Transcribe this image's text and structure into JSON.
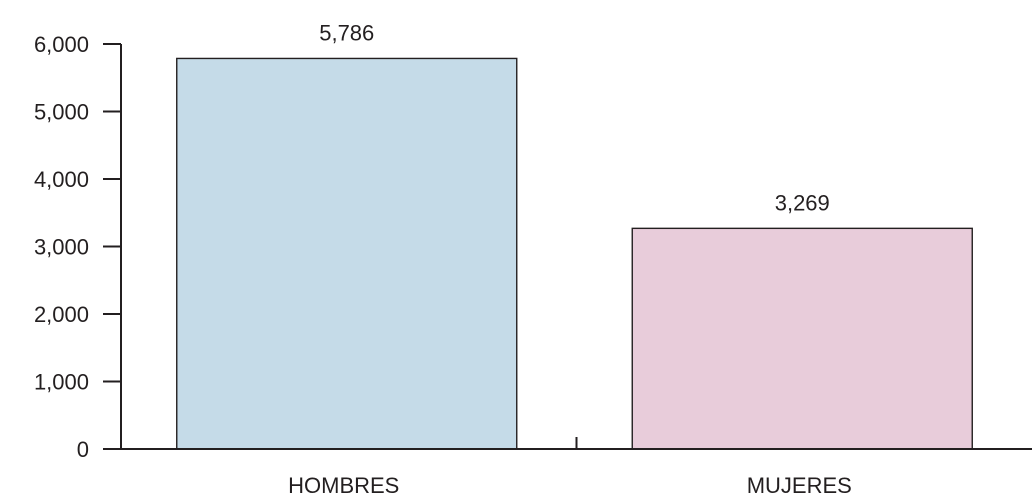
{
  "chart_data": {
    "type": "bar",
    "categories": [
      "HOMBRES",
      "MUJERES"
    ],
    "values": [
      5786,
      3269
    ],
    "data_labels": [
      "5,786",
      "3,269"
    ],
    "bar_colors": [
      "#c5dbe8",
      "#e8ccda"
    ],
    "yticks": [
      0,
      1000,
      2000,
      3000,
      4000,
      5000,
      6000
    ],
    "ytick_labels": [
      "0",
      "1,000",
      "2,000",
      "3,000",
      "4,000",
      "5,000",
      "6,000"
    ],
    "ylim": [
      0,
      6000
    ],
    "title": "",
    "xlabel": "",
    "ylabel": "",
    "grid": false,
    "legend": "none"
  }
}
